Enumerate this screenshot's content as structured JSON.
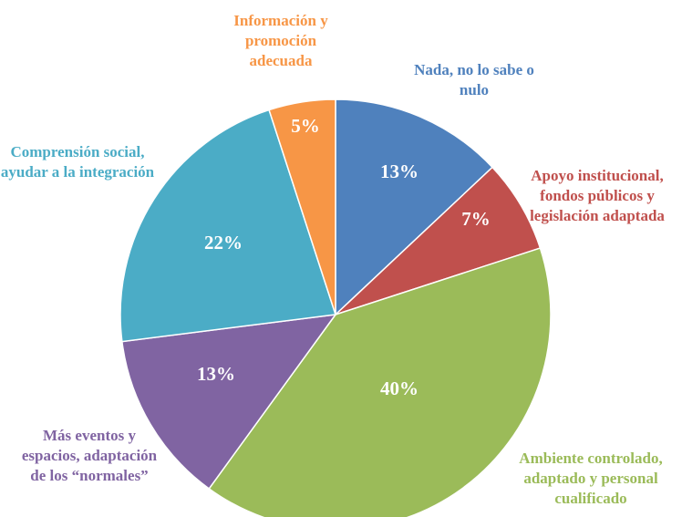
{
  "chart_data": {
    "type": "pie",
    "categories": [
      "Nada, no lo sabe o nulo",
      "Apoyo institucional, fondos públicos y legislación adaptada",
      "Ambiente controlado, adaptado y personal cualificado",
      "Más eventos y espacios, adaptación de los “normales”",
      "Comprensión social, ayudar a la integración",
      "Información y promoción adecuada"
    ],
    "values": [
      13,
      7,
      40,
      13,
      22,
      5
    ],
    "value_labels": [
      "13%",
      "7%",
      "40%",
      "13%",
      "22%",
      "5%"
    ],
    "colors": [
      "#4f81bd",
      "#c0504d",
      "#9bbb59",
      "#8064a2",
      "#4bacc6",
      "#f79646"
    ]
  }
}
